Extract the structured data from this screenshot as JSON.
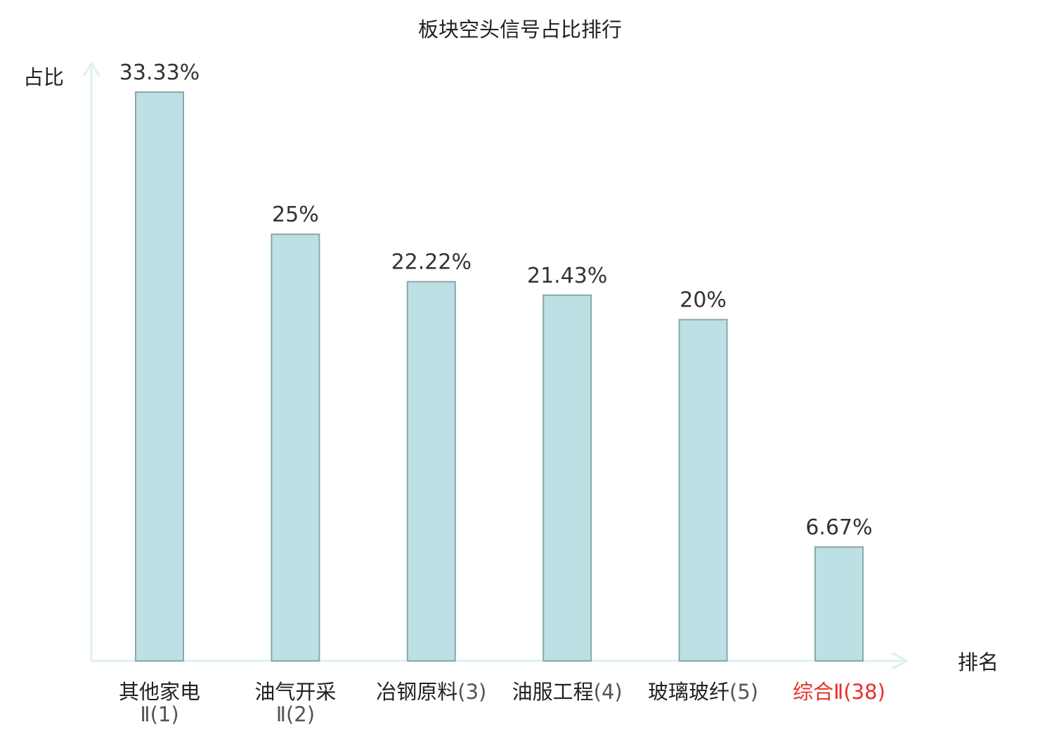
{
  "chart_data": {
    "type": "bar",
    "title": "板块空头信号占比排行",
    "xlabel": "排名",
    "ylabel": "占比",
    "categories": [
      {
        "name": "其他家电",
        "rank": "Ⅱ(1)",
        "highlight": false
      },
      {
        "name": "油气开采",
        "rank": "Ⅱ(2)",
        "highlight": false
      },
      {
        "name": "冶钢原料",
        "rank": "(3)",
        "highlight": false
      },
      {
        "name": "油服工程",
        "rank": "(4)",
        "highlight": false
      },
      {
        "name": "玻璃玻纤",
        "rank": "(5)",
        "highlight": false
      },
      {
        "name": "综合",
        "rank": "Ⅱ(38)",
        "highlight": true
      }
    ],
    "values": [
      33.33,
      25,
      22.22,
      21.43,
      20,
      6.67
    ],
    "value_labels": [
      "33.33%",
      "25%",
      "22.22%",
      "21.43%",
      "20%",
      "6.67%"
    ],
    "ylim": [
      0,
      33.33
    ],
    "colors": {
      "bar_fill": "#bce0e3",
      "bar_stroke": "#8aa7aa",
      "axis": "#dff1ee",
      "text": "#222222",
      "label_text": "#333333",
      "highlight": "#e8312b"
    }
  }
}
